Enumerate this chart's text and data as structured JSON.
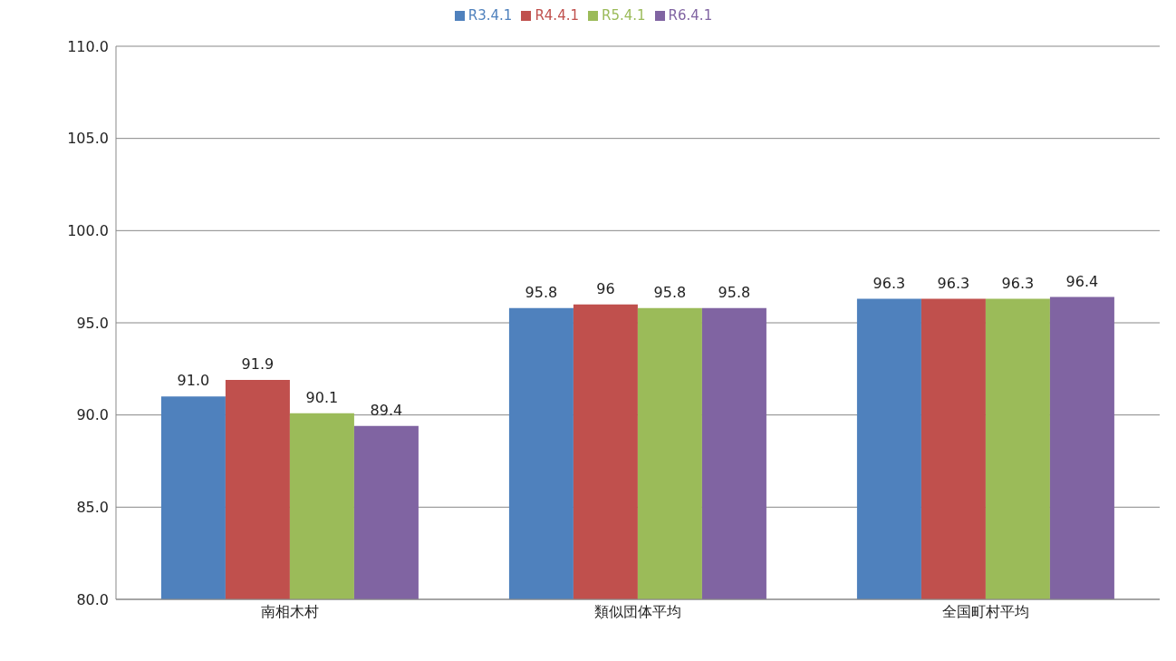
{
  "chart_data": {
    "type": "bar",
    "categories": [
      "南相木村",
      "類似団体平均",
      "全国町村平均"
    ],
    "series": [
      {
        "name": "R3.4.1",
        "color": "#4f81bd",
        "values": [
          91.0,
          95.8,
          96.3
        ],
        "value_labels": [
          "91.0",
          "95.8",
          "96.3"
        ]
      },
      {
        "name": "R4.4.1",
        "color": "#c0504d",
        "values": [
          91.9,
          96,
          96.3
        ],
        "value_labels": [
          "91.9",
          "96",
          "96.3"
        ]
      },
      {
        "name": "R5.4.1",
        "color": "#9bbb59",
        "values": [
          90.1,
          95.8,
          96.3
        ],
        "value_labels": [
          "90.1",
          "95.8",
          "96.3"
        ]
      },
      {
        "name": "R6.4.1",
        "color": "#8064a2",
        "values": [
          89.4,
          95.8,
          96.4
        ],
        "value_labels": [
          "89.4",
          "95.8",
          "96.4"
        ]
      }
    ],
    "ylim": [
      80,
      110
    ],
    "yticks": [
      {
        "value": 80,
        "label": "80.0"
      },
      {
        "value": 85,
        "label": "85.0"
      },
      {
        "value": 90,
        "label": "90.0"
      },
      {
        "value": 95,
        "label": "95.0"
      },
      {
        "value": 100,
        "label": "100.0"
      },
      {
        "value": 105,
        "label": "105.0"
      },
      {
        "value": 110,
        "label": "110.0"
      }
    ],
    "grid": "y",
    "legend": "top"
  }
}
